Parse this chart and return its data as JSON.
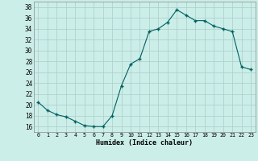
{
  "x": [
    0,
    1,
    2,
    3,
    4,
    5,
    6,
    7,
    8,
    9,
    10,
    11,
    12,
    13,
    14,
    15,
    16,
    17,
    18,
    19,
    20,
    21,
    22,
    23
  ],
  "y": [
    20.5,
    19.0,
    18.2,
    17.8,
    17.0,
    16.2,
    16.0,
    16.0,
    18.0,
    23.5,
    27.5,
    28.5,
    33.5,
    34.0,
    35.2,
    37.5,
    36.5,
    35.5,
    35.5,
    34.5,
    34.0,
    33.5,
    27.0,
    26.5
  ],
  "ylim": [
    15,
    39
  ],
  "xlim": [
    -0.5,
    23.5
  ],
  "yticks": [
    16,
    18,
    20,
    22,
    24,
    26,
    28,
    30,
    32,
    34,
    36,
    38
  ],
  "xtick_labels": [
    "0",
    "1",
    "2",
    "3",
    "4",
    "5",
    "6",
    "7",
    "8",
    "9",
    "10",
    "11",
    "12",
    "13",
    "14",
    "15",
    "16",
    "17",
    "18",
    "19",
    "20",
    "21",
    "22",
    "23"
  ],
  "xlabel": "Humidex (Indice chaleur)",
  "line_color": "#006060",
  "marker_color": "#006060",
  "bg_color": "#cceee8",
  "grid_color": "#aacccc"
}
